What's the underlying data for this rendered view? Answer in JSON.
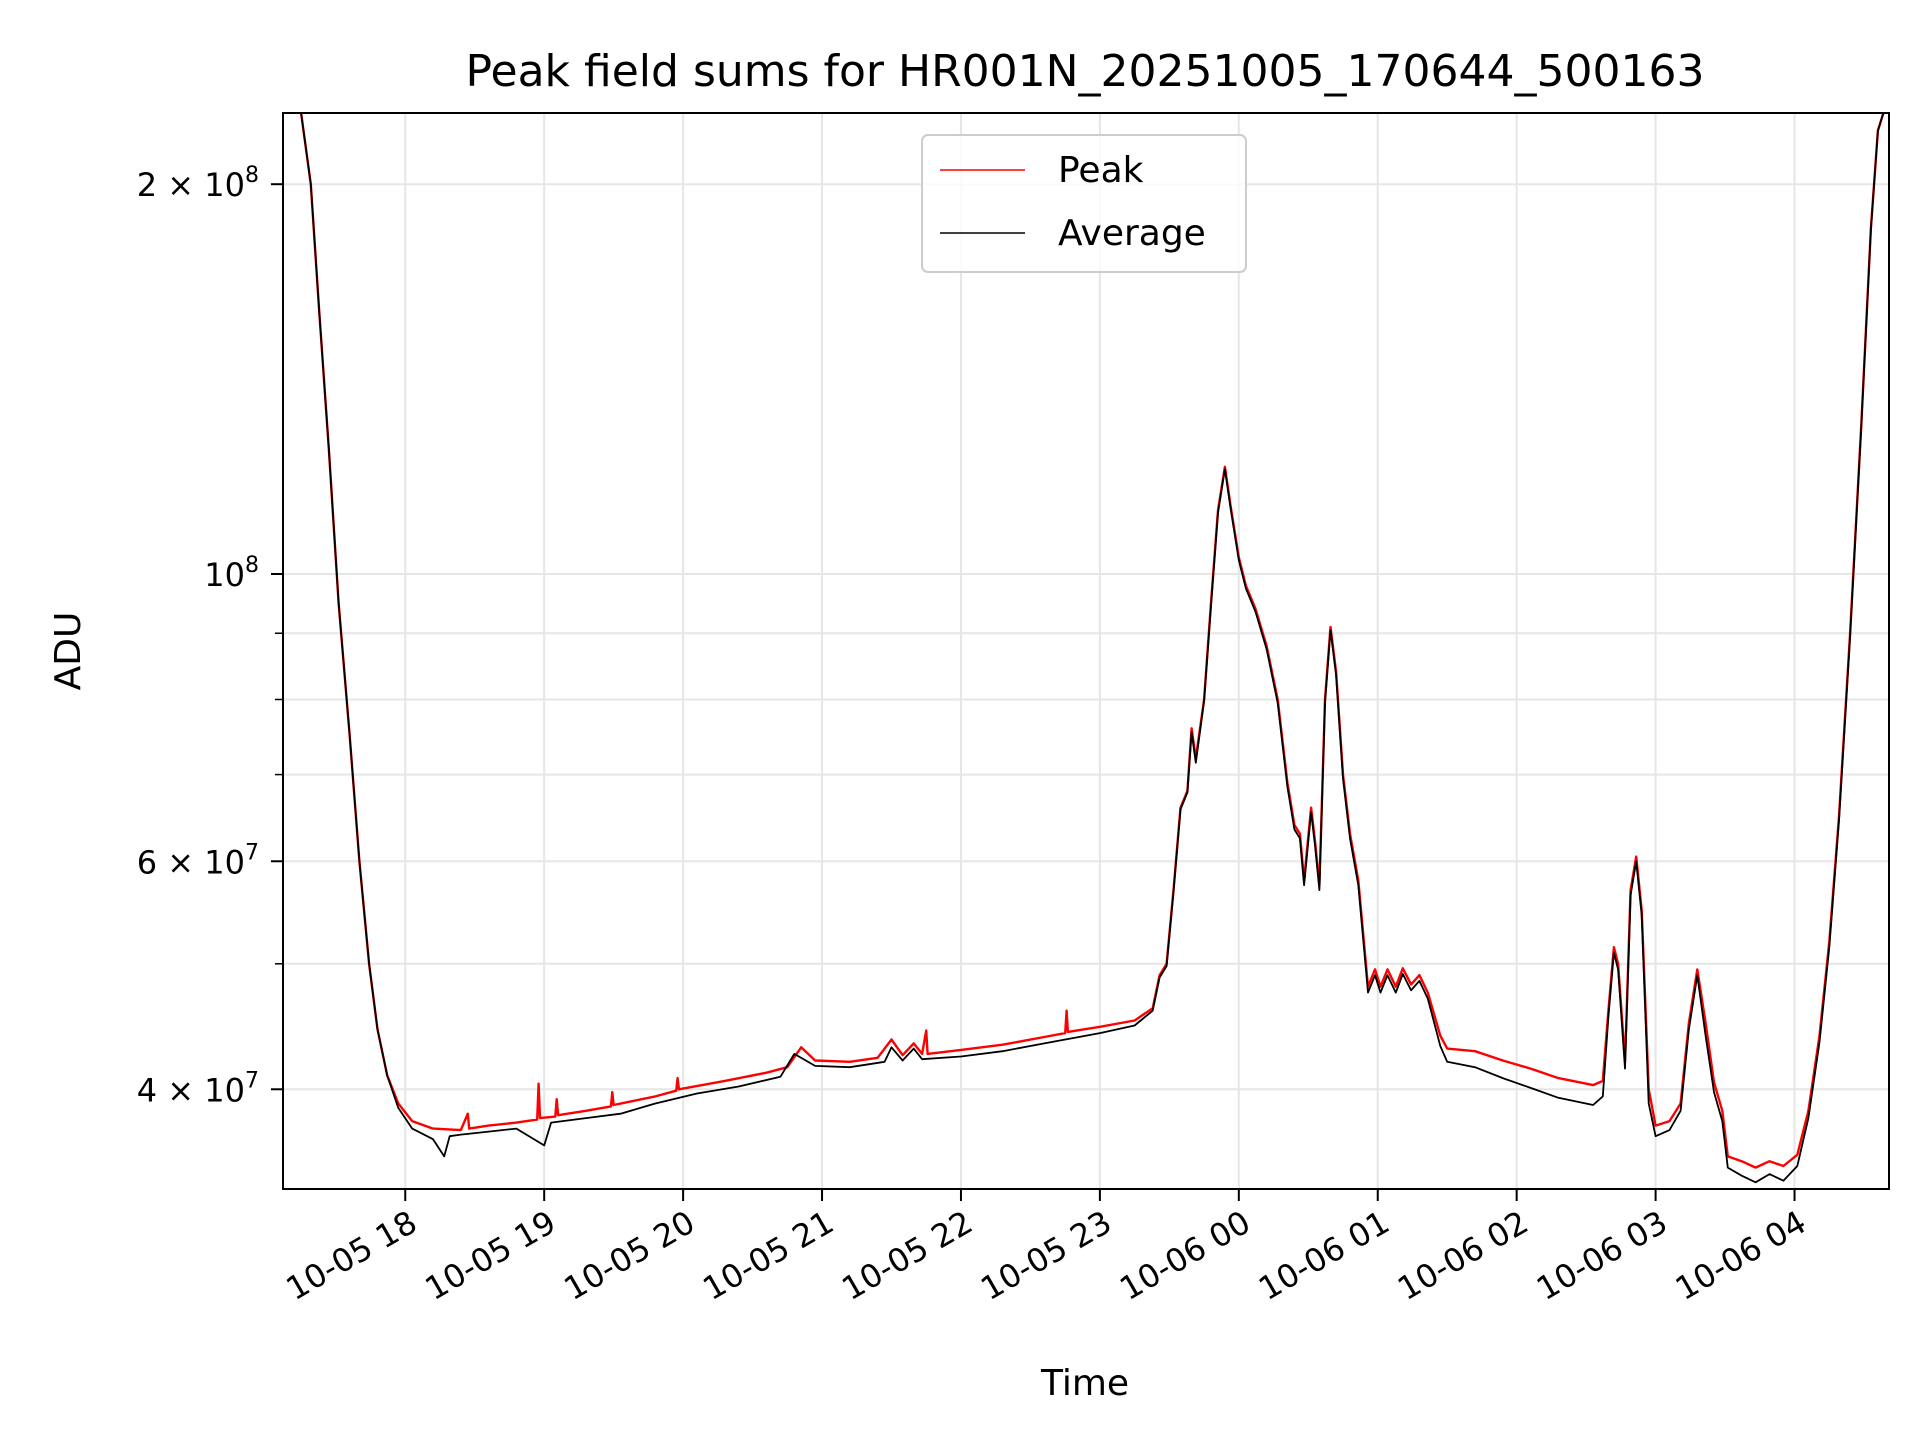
{
  "chart_data": {
    "type": "line",
    "title": "Peak field sums for HR001N_20251005_170644_500163",
    "xlabel": "Time",
    "ylabel": "ADU",
    "yscale": "log",
    "ylim": [
      33500000,
      227000000
    ],
    "xlim_hours": [
      -0.88,
      10.68
    ],
    "grid": true,
    "legend_position": "upper-center",
    "x_ticks": [
      {
        "label": "10-05 18",
        "hour": 0
      },
      {
        "label": "10-05 19",
        "hour": 1
      },
      {
        "label": "10-05 20",
        "hour": 2
      },
      {
        "label": "10-05 21",
        "hour": 3
      },
      {
        "label": "10-05 22",
        "hour": 4
      },
      {
        "label": "10-05 23",
        "hour": 5
      },
      {
        "label": "10-06 00",
        "hour": 6
      },
      {
        "label": "10-06 01",
        "hour": 7
      },
      {
        "label": "10-06 02",
        "hour": 8
      },
      {
        "label": "10-06 03",
        "hour": 9
      },
      {
        "label": "10-06 04",
        "hour": 10
      }
    ],
    "y_ticks": [
      {
        "base": "4 × 10",
        "exp": "7",
        "value": 40000000
      },
      {
        "base": "6 × 10",
        "exp": "7",
        "value": 60000000
      },
      {
        "base": "10",
        "exp": "8",
        "value": 100000000
      },
      {
        "base": "2 × 10",
        "exp": "8",
        "value": 200000000
      }
    ],
    "series": [
      {
        "name": "Peak",
        "color": "#ff0000",
        "points": [
          [
            -0.75,
            227000000
          ],
          [
            -0.68,
            200000000
          ],
          [
            -0.62,
            160000000
          ],
          [
            -0.55,
            125000000
          ],
          [
            -0.48,
            95000000
          ],
          [
            -0.4,
            75000000
          ],
          [
            -0.33,
            60000000
          ],
          [
            -0.26,
            50000000
          ],
          [
            -0.2,
            44500000
          ],
          [
            -0.13,
            41000000
          ],
          [
            -0.05,
            39000000
          ],
          [
            0.05,
            37800000
          ],
          [
            0.2,
            37300000
          ],
          [
            0.4,
            37200000
          ],
          [
            0.45,
            38300000
          ],
          [
            0.46,
            37300000
          ],
          [
            0.6,
            37500000
          ],
          [
            0.8,
            37700000
          ],
          [
            0.95,
            37900000
          ],
          [
            0.96,
            40400000
          ],
          [
            0.97,
            38000000
          ],
          [
            1.08,
            38100000
          ],
          [
            1.09,
            39300000
          ],
          [
            1.1,
            38200000
          ],
          [
            1.3,
            38500000
          ],
          [
            1.48,
            38800000
          ],
          [
            1.49,
            39800000
          ],
          [
            1.5,
            38900000
          ],
          [
            1.8,
            39500000
          ],
          [
            1.95,
            39900000
          ],
          [
            1.96,
            40800000
          ],
          [
            1.97,
            40000000
          ],
          [
            2.3,
            40600000
          ],
          [
            2.6,
            41200000
          ],
          [
            2.75,
            41600000
          ],
          [
            2.85,
            43100000
          ],
          [
            2.95,
            42100000
          ],
          [
            3.2,
            42000000
          ],
          [
            3.4,
            42300000
          ],
          [
            3.5,
            43700000
          ],
          [
            3.58,
            42500000
          ],
          [
            3.66,
            43400000
          ],
          [
            3.72,
            42600000
          ],
          [
            3.75,
            44400000
          ],
          [
            3.76,
            42600000
          ],
          [
            4.0,
            42900000
          ],
          [
            4.3,
            43300000
          ],
          [
            4.6,
            43900000
          ],
          [
            4.75,
            44200000
          ],
          [
            4.76,
            46000000
          ],
          [
            4.77,
            44300000
          ],
          [
            5.0,
            44700000
          ],
          [
            5.25,
            45200000
          ],
          [
            5.38,
            46200000
          ],
          [
            5.43,
            49000000
          ],
          [
            5.48,
            50000000
          ],
          [
            5.53,
            57000000
          ],
          [
            5.58,
            66000000
          ],
          [
            5.63,
            68000000
          ],
          [
            5.66,
            76000000
          ],
          [
            5.69,
            72000000
          ],
          [
            5.75,
            80000000
          ],
          [
            5.8,
            95000000
          ],
          [
            5.85,
            112000000
          ],
          [
            5.9,
            121000000
          ],
          [
            5.94,
            113000000
          ],
          [
            6.0,
            103000000
          ],
          [
            6.05,
            98000000
          ],
          [
            6.12,
            94000000
          ],
          [
            6.2,
            88000000
          ],
          [
            6.28,
            80000000
          ],
          [
            6.35,
            69000000
          ],
          [
            6.4,
            64000000
          ],
          [
            6.44,
            63000000
          ],
          [
            6.47,
            58000000
          ],
          [
            6.52,
            66000000
          ],
          [
            6.55,
            62000000
          ],
          [
            6.58,
            57500000
          ],
          [
            6.62,
            80000000
          ],
          [
            6.66,
            91000000
          ],
          [
            6.7,
            84000000
          ],
          [
            6.75,
            70000000
          ],
          [
            6.8,
            63000000
          ],
          [
            6.86,
            58000000
          ],
          [
            6.9,
            52000000
          ],
          [
            6.93,
            48000000
          ],
          [
            6.98,
            49500000
          ],
          [
            7.02,
            48000000
          ],
          [
            7.07,
            49500000
          ],
          [
            7.13,
            48000000
          ],
          [
            7.18,
            49600000
          ],
          [
            7.24,
            48200000
          ],
          [
            7.3,
            49000000
          ],
          [
            7.36,
            47500000
          ],
          [
            7.45,
            44000000
          ],
          [
            7.5,
            43000000
          ],
          [
            7.7,
            42800000
          ],
          [
            7.9,
            42100000
          ],
          [
            8.1,
            41500000
          ],
          [
            8.3,
            40800000
          ],
          [
            8.55,
            40300000
          ],
          [
            8.62,
            40600000
          ],
          [
            8.66,
            46000000
          ],
          [
            8.7,
            51500000
          ],
          [
            8.73,
            50000000
          ],
          [
            8.76,
            45000000
          ],
          [
            8.78,
            42000000
          ],
          [
            8.82,
            57000000
          ],
          [
            8.86,
            60500000
          ],
          [
            8.9,
            55000000
          ],
          [
            8.95,
            40000000
          ],
          [
            9.0,
            37500000
          ],
          [
            9.1,
            37800000
          ],
          [
            9.18,
            39000000
          ],
          [
            9.24,
            45000000
          ],
          [
            9.3,
            49500000
          ],
          [
            9.36,
            45000000
          ],
          [
            9.42,
            40500000
          ],
          [
            9.48,
            38500000
          ],
          [
            9.52,
            35500000
          ],
          [
            9.62,
            35200000
          ],
          [
            9.72,
            34800000
          ],
          [
            9.82,
            35200000
          ],
          [
            9.92,
            34900000
          ],
          [
            10.02,
            35600000
          ],
          [
            10.1,
            38500000
          ],
          [
            10.18,
            44000000
          ],
          [
            10.25,
            52000000
          ],
          [
            10.32,
            65000000
          ],
          [
            10.4,
            90000000
          ],
          [
            10.48,
            130000000
          ],
          [
            10.55,
            185000000
          ],
          [
            10.6,
            220000000
          ],
          [
            10.64,
            227000000
          ]
        ]
      },
      {
        "name": "Average",
        "color": "#000000",
        "points": [
          [
            -0.75,
            227000000
          ],
          [
            -0.68,
            200000000
          ],
          [
            -0.62,
            160000000
          ],
          [
            -0.55,
            125000000
          ],
          [
            -0.48,
            95000000
          ],
          [
            -0.4,
            75000000
          ],
          [
            -0.33,
            60000000
          ],
          [
            -0.26,
            50000000
          ],
          [
            -0.2,
            44500000
          ],
          [
            -0.13,
            41000000
          ],
          [
            -0.05,
            38700000
          ],
          [
            0.05,
            37300000
          ],
          [
            0.2,
            36600000
          ],
          [
            0.28,
            35500000
          ],
          [
            0.32,
            36800000
          ],
          [
            0.4,
            36900000
          ],
          [
            0.6,
            37100000
          ],
          [
            0.8,
            37300000
          ],
          [
            1.0,
            36200000
          ],
          [
            1.05,
            37700000
          ],
          [
            1.3,
            38000000
          ],
          [
            1.55,
            38300000
          ],
          [
            1.8,
            39000000
          ],
          [
            2.1,
            39700000
          ],
          [
            2.4,
            40200000
          ],
          [
            2.7,
            40900000
          ],
          [
            2.8,
            42600000
          ],
          [
            2.95,
            41700000
          ],
          [
            3.2,
            41600000
          ],
          [
            3.45,
            42000000
          ],
          [
            3.5,
            43100000
          ],
          [
            3.58,
            42100000
          ],
          [
            3.66,
            43000000
          ],
          [
            3.72,
            42200000
          ],
          [
            4.0,
            42400000
          ],
          [
            4.3,
            42800000
          ],
          [
            4.6,
            43400000
          ],
          [
            5.0,
            44200000
          ],
          [
            5.25,
            44800000
          ],
          [
            5.38,
            46000000
          ],
          [
            5.43,
            48800000
          ],
          [
            5.48,
            49800000
          ],
          [
            5.53,
            56800000
          ],
          [
            5.58,
            65800000
          ],
          [
            5.63,
            67800000
          ],
          [
            5.66,
            75500000
          ],
          [
            5.69,
            71500000
          ],
          [
            5.75,
            79800000
          ],
          [
            5.8,
            94500000
          ],
          [
            5.85,
            111500000
          ],
          [
            5.9,
            120500000
          ],
          [
            5.94,
            112500000
          ],
          [
            6.0,
            102500000
          ],
          [
            6.05,
            97500000
          ],
          [
            6.12,
            93500000
          ],
          [
            6.2,
            87500000
          ],
          [
            6.28,
            79500000
          ],
          [
            6.35,
            68500000
          ],
          [
            6.4,
            63500000
          ],
          [
            6.44,
            62500000
          ],
          [
            6.47,
            57500000
          ],
          [
            6.52,
            65500000
          ],
          [
            6.55,
            61500000
          ],
          [
            6.58,
            57000000
          ],
          [
            6.62,
            79500000
          ],
          [
            6.66,
            90500000
          ],
          [
            6.7,
            83500000
          ],
          [
            6.75,
            69500000
          ],
          [
            6.8,
            62500000
          ],
          [
            6.86,
            57500000
          ],
          [
            6.9,
            51500000
          ],
          [
            6.93,
            47500000
          ],
          [
            6.98,
            49000000
          ],
          [
            7.02,
            47500000
          ],
          [
            7.07,
            49000000
          ],
          [
            7.13,
            47500000
          ],
          [
            7.18,
            49100000
          ],
          [
            7.24,
            47700000
          ],
          [
            7.3,
            48500000
          ],
          [
            7.36,
            47000000
          ],
          [
            7.45,
            43200000
          ],
          [
            7.5,
            42000000
          ],
          [
            7.7,
            41600000
          ],
          [
            7.9,
            40800000
          ],
          [
            8.1,
            40100000
          ],
          [
            8.3,
            39400000
          ],
          [
            8.55,
            38900000
          ],
          [
            8.62,
            39500000
          ],
          [
            8.66,
            45500000
          ],
          [
            8.7,
            51000000
          ],
          [
            8.73,
            49500000
          ],
          [
            8.76,
            44500000
          ],
          [
            8.78,
            41500000
          ],
          [
            8.82,
            56500000
          ],
          [
            8.86,
            60000000
          ],
          [
            8.9,
            54500000
          ],
          [
            8.95,
            39000000
          ],
          [
            9.0,
            36800000
          ],
          [
            9.1,
            37200000
          ],
          [
            9.18,
            38500000
          ],
          [
            9.24,
            44500000
          ],
          [
            9.3,
            49000000
          ],
          [
            9.36,
            44000000
          ],
          [
            9.42,
            39800000
          ],
          [
            9.48,
            37800000
          ],
          [
            9.52,
            34800000
          ],
          [
            9.62,
            34300000
          ],
          [
            9.72,
            33900000
          ],
          [
            9.82,
            34400000
          ],
          [
            9.92,
            34000000
          ],
          [
            10.02,
            34900000
          ],
          [
            10.1,
            38000000
          ],
          [
            10.18,
            43500000
          ],
          [
            10.25,
            51500000
          ],
          [
            10.32,
            64500000
          ],
          [
            10.4,
            89500000
          ],
          [
            10.48,
            129500000
          ],
          [
            10.55,
            184500000
          ],
          [
            10.6,
            220000000
          ],
          [
            10.64,
            227000000
          ]
        ]
      }
    ]
  }
}
